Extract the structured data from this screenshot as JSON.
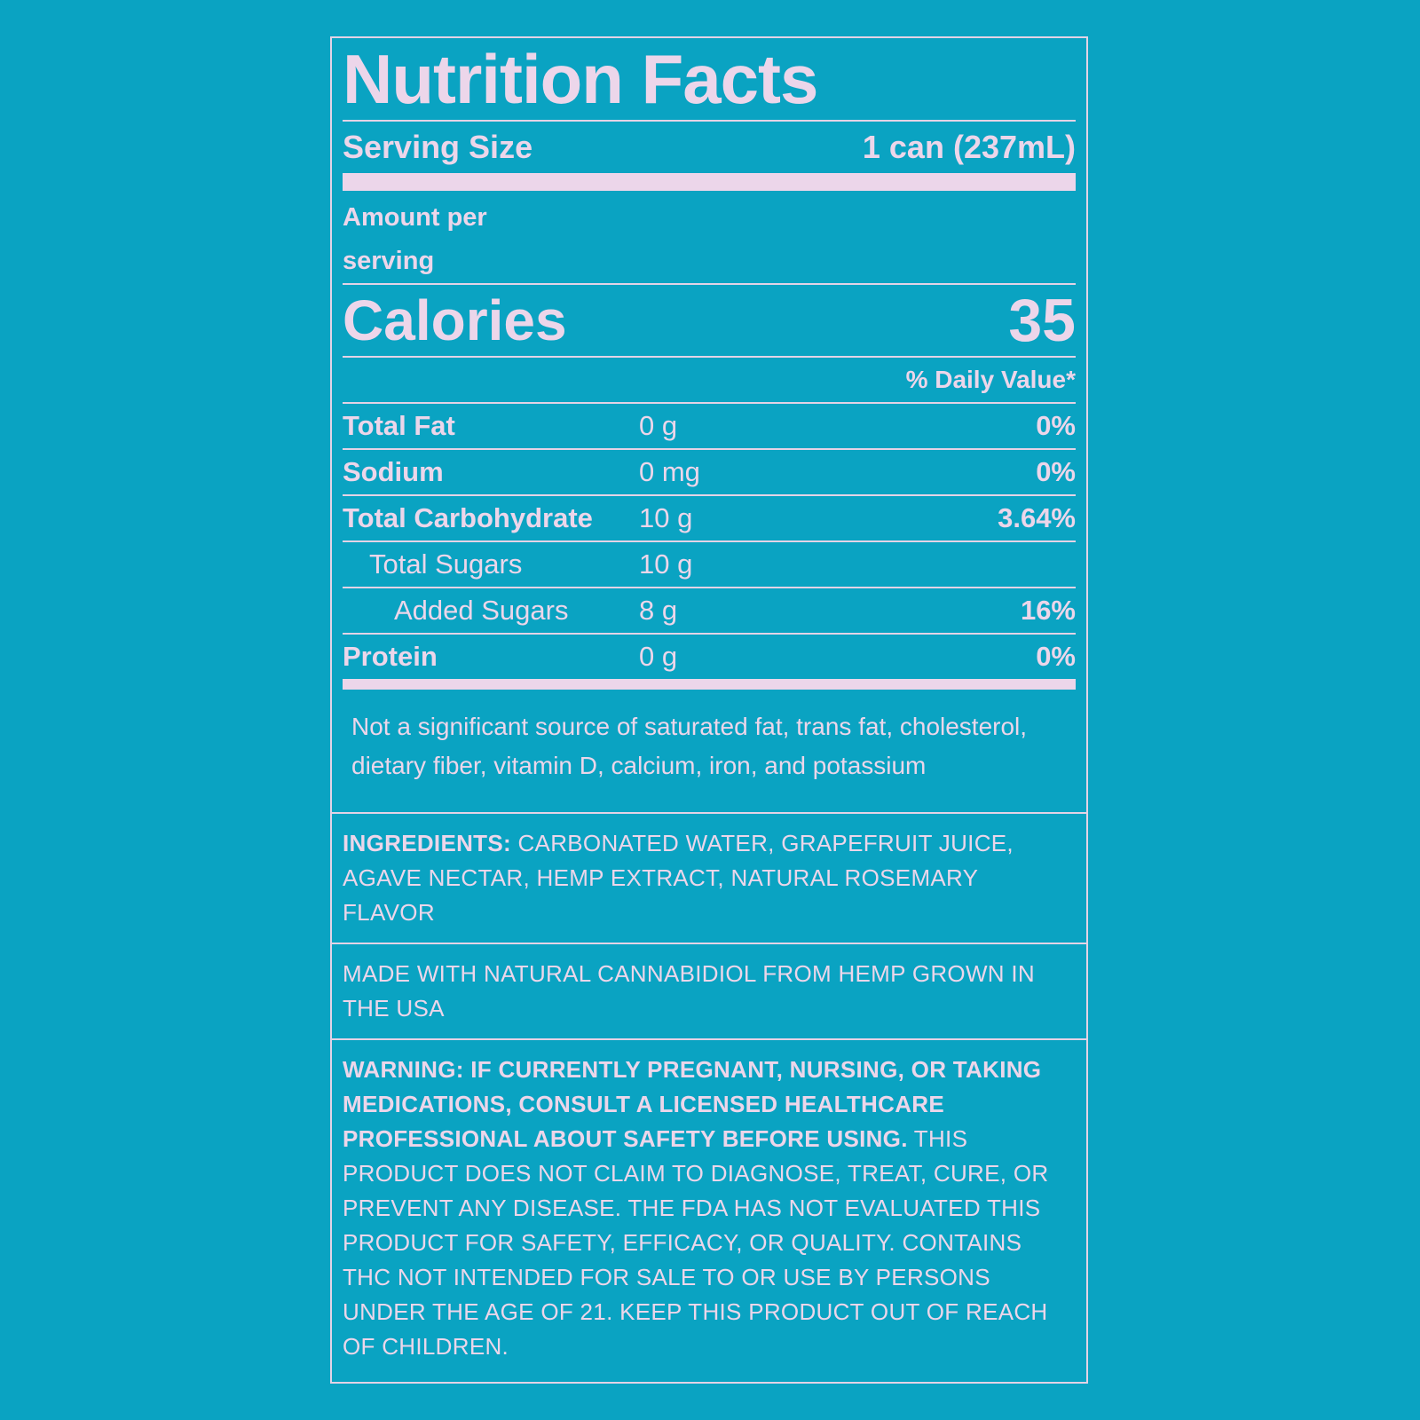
{
  "title": "Nutrition Facts",
  "serving": {
    "label": "Serving Size",
    "value": "1 can (237mL)"
  },
  "amount_per_serving": "Amount per serving",
  "calories": {
    "label": "Calories",
    "value": 35
  },
  "daily_value_header": "% Daily Value*",
  "nutrients": [
    {
      "name": "Total Fat",
      "amount": "0 g",
      "daily_value": "0%"
    },
    {
      "name": "Sodium",
      "amount": "0 mg",
      "daily_value": "0%"
    },
    {
      "name": "Total Carbohydrate",
      "amount": "10 g",
      "daily_value": "3.64%"
    },
    {
      "name": "Total Sugars",
      "amount": "10 g"
    },
    {
      "name": "Added Sugars",
      "amount": "8 g",
      "daily_value": "16%"
    },
    {
      "name": "Protein",
      "amount": "0 g",
      "daily_value": "0%"
    }
  ],
  "footnote": "Not a significant source of saturated fat, trans fat, cholesterol, dietary fiber, vitamin D, calcium, iron, and potassium",
  "ingredients": {
    "label": "INGREDIENTS:",
    "text": "CARBONATED WATER, GRAPEFRUIT JUICE, AGAVE NECTAR, HEMP EXTRACT, NATURAL ROSEMARY FLAVOR"
  },
  "made_with": "MADE WITH NATURAL CANNABIDIOL FROM HEMP GROWN IN THE USA",
  "warning": {
    "bold": "WARNING: IF CURRENTLY PREGNANT, NURSING, OR TAKING MEDICATIONS, CONSULT A LICENSED HEALTHCARE PROFESSIONAL ABOUT SAFETY BEFORE USING.",
    "text": "THIS PRODUCT DOES NOT CLAIM TO DIAGNOSE, TREAT, CURE, OR PREVENT ANY DISEASE. THE FDA HAS NOT EVALUATED THIS PRODUCT FOR SAFETY, EFFICACY, OR QUALITY. CONTAINS THC NOT INTENDED FOR SALE TO OR USE BY PERSONS UNDER THE AGE OF 21. KEEP THIS PRODUCT OUT OF REACH OF CHILDREN."
  }
}
